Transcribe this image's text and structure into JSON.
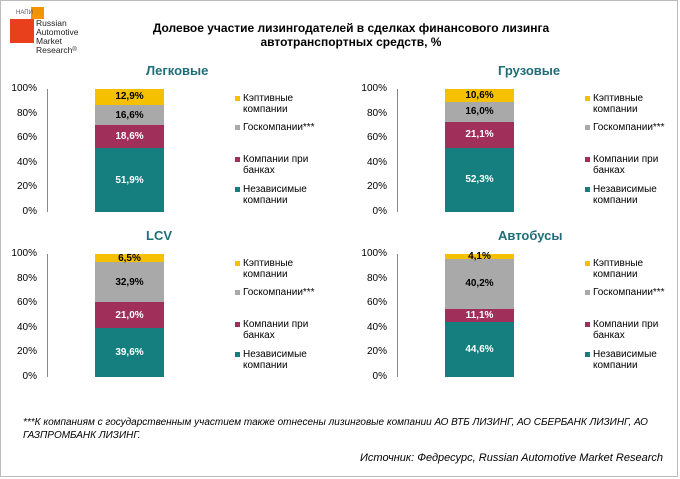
{
  "logo": {
    "badge": "НАПИ",
    "lines": [
      "Russian",
      "Automotive",
      "Market",
      "Research"
    ],
    "mark": "®"
  },
  "title_line1": "Долевое участие лизингодателей в сделках финансового лизинга",
  "title_line2": "автотранспортных средств, %",
  "footnote": "***К компаниям с государственным участием также отнесены лизинговые компании АО ВТБ ЛИЗИНГ, АО СБЕРБАНК ЛИЗИНГ, АО ГАЗПРОМБАНК ЛИЗИНГ.",
  "source": "Источник: Федресурс, Russian Automotive Market Research",
  "legend_labels": [
    [
      "Кэптивные",
      "компании"
    ],
    [
      "Госкомпании***"
    ],
    [
      "Компании при",
      "банках"
    ],
    [
      "Независимые",
      "компании"
    ]
  ],
  "colors": {
    "captive": "#f5c000",
    "state": "#a9a9a9",
    "bank": "#a0305a",
    "independent": "#157f80",
    "title": "#1f6e78"
  },
  "chart_data": [
    {
      "type": "bar",
      "stacked": true,
      "title": "Легковые",
      "ylim": [
        0,
        100
      ],
      "yticks": [
        "0%",
        "20%",
        "40%",
        "60%",
        "80%",
        "100%"
      ],
      "series": [
        {
          "name": "Независимые компании",
          "values": [
            51.9
          ],
          "label": "51,9%"
        },
        {
          "name": "Компании при банках",
          "values": [
            18.6
          ],
          "label": "18,6%"
        },
        {
          "name": "Госкомпании***",
          "values": [
            16.6
          ],
          "label": "16,6%"
        },
        {
          "name": "Кэптивные компании",
          "values": [
            12.9
          ],
          "label": "12,9%"
        }
      ]
    },
    {
      "type": "bar",
      "stacked": true,
      "title": "Грузовые",
      "ylim": [
        0,
        100
      ],
      "yticks": [
        "0%",
        "20%",
        "40%",
        "60%",
        "80%",
        "100%"
      ],
      "series": [
        {
          "name": "Независимые компании",
          "values": [
            52.3
          ],
          "label": "52,3%"
        },
        {
          "name": "Компании при банках",
          "values": [
            21.1
          ],
          "label": "21,1%"
        },
        {
          "name": "Госкомпании***",
          "values": [
            16.0
          ],
          "label": "16,0%"
        },
        {
          "name": "Кэптивные компании",
          "values": [
            10.6
          ],
          "label": "10,6%"
        }
      ]
    },
    {
      "type": "bar",
      "stacked": true,
      "title": "LCV",
      "ylim": [
        0,
        100
      ],
      "yticks": [
        "0%",
        "20%",
        "40%",
        "60%",
        "80%",
        "100%"
      ],
      "series": [
        {
          "name": "Независимые компании",
          "values": [
            39.6
          ],
          "label": "39,6%"
        },
        {
          "name": "Компании при банках",
          "values": [
            21.0
          ],
          "label": "21,0%"
        },
        {
          "name": "Госкомпании***",
          "values": [
            32.9
          ],
          "label": "32,9%"
        },
        {
          "name": "Кэптивные компании",
          "values": [
            6.5
          ],
          "label": "6,5%"
        }
      ]
    },
    {
      "type": "bar",
      "stacked": true,
      "title": "Автобусы",
      "ylim": [
        0,
        100
      ],
      "yticks": [
        "0%",
        "20%",
        "40%",
        "60%",
        "80%",
        "100%"
      ],
      "series": [
        {
          "name": "Независимые компании",
          "values": [
            44.6
          ],
          "label": "44,6%"
        },
        {
          "name": "Компании при банках",
          "values": [
            11.1
          ],
          "label": "11,1%"
        },
        {
          "name": "Госкомпании***",
          "values": [
            40.2
          ],
          "label": "40,2%"
        },
        {
          "name": "Кэптивные компании",
          "values": [
            4.1
          ],
          "label": "4,1%"
        }
      ]
    }
  ]
}
